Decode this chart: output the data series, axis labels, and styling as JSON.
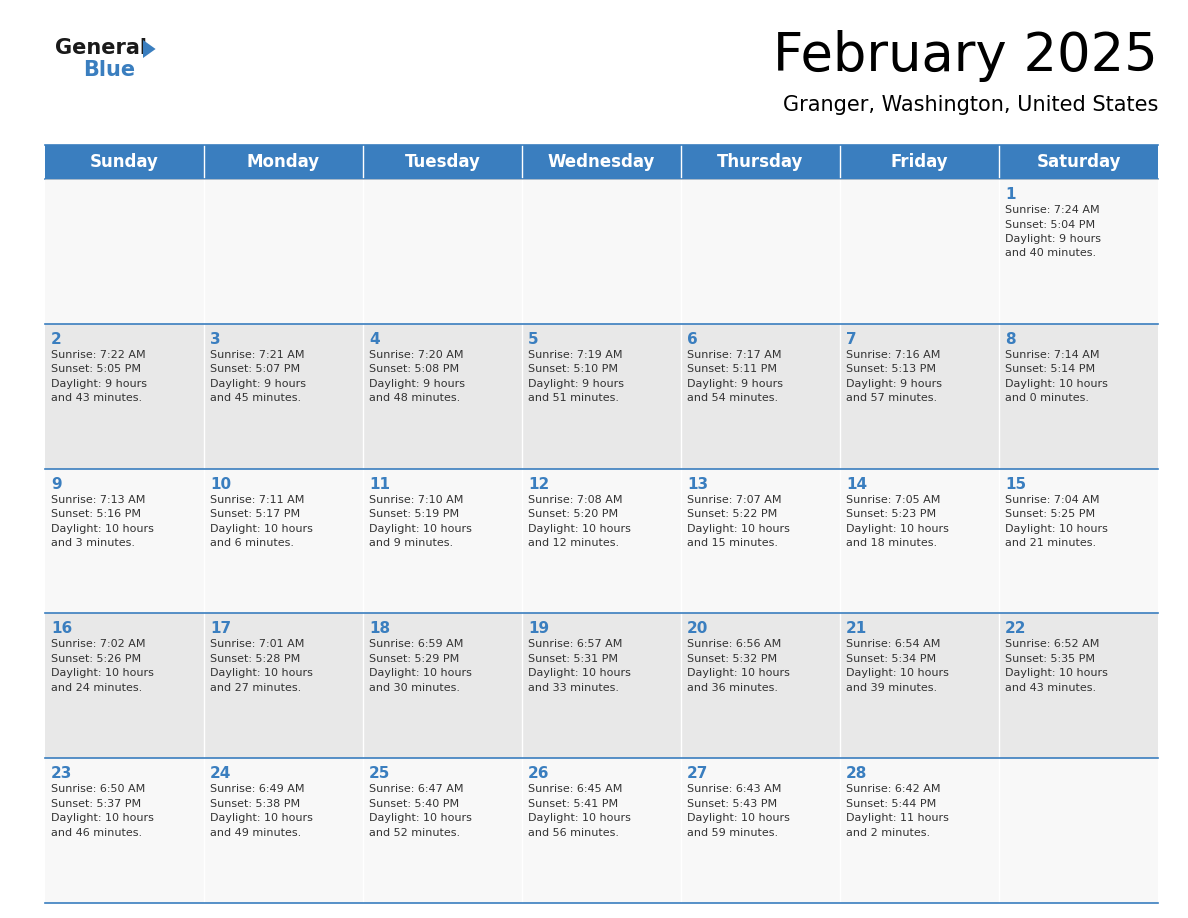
{
  "title": "February 2025",
  "subtitle": "Granger, Washington, United States",
  "header_color": "#3a7ebf",
  "header_text_color": "#ffffff",
  "cell_bg_color_odd": "#e8e8e8",
  "cell_bg_color_even": "#f8f8f8",
  "day_number_color": "#3a7ebf",
  "cell_text_color": "#333333",
  "border_color": "#3a7ebf",
  "days_of_week": [
    "Sunday",
    "Monday",
    "Tuesday",
    "Wednesday",
    "Thursday",
    "Friday",
    "Saturday"
  ],
  "weeks": [
    [
      {
        "day": null,
        "sunrise": null,
        "sunset": null,
        "daylight": null
      },
      {
        "day": null,
        "sunrise": null,
        "sunset": null,
        "daylight": null
      },
      {
        "day": null,
        "sunrise": null,
        "sunset": null,
        "daylight": null
      },
      {
        "day": null,
        "sunrise": null,
        "sunset": null,
        "daylight": null
      },
      {
        "day": null,
        "sunrise": null,
        "sunset": null,
        "daylight": null
      },
      {
        "day": null,
        "sunrise": null,
        "sunset": null,
        "daylight": null
      },
      {
        "day": 1,
        "sunrise": "7:24 AM",
        "sunset": "5:04 PM",
        "daylight": "9 hours and 40 minutes."
      }
    ],
    [
      {
        "day": 2,
        "sunrise": "7:22 AM",
        "sunset": "5:05 PM",
        "daylight": "9 hours and 43 minutes."
      },
      {
        "day": 3,
        "sunrise": "7:21 AM",
        "sunset": "5:07 PM",
        "daylight": "9 hours and 45 minutes."
      },
      {
        "day": 4,
        "sunrise": "7:20 AM",
        "sunset": "5:08 PM",
        "daylight": "9 hours and 48 minutes."
      },
      {
        "day": 5,
        "sunrise": "7:19 AM",
        "sunset": "5:10 PM",
        "daylight": "9 hours and 51 minutes."
      },
      {
        "day": 6,
        "sunrise": "7:17 AM",
        "sunset": "5:11 PM",
        "daylight": "9 hours and 54 minutes."
      },
      {
        "day": 7,
        "sunrise": "7:16 AM",
        "sunset": "5:13 PM",
        "daylight": "9 hours and 57 minutes."
      },
      {
        "day": 8,
        "sunrise": "7:14 AM",
        "sunset": "5:14 PM",
        "daylight": "10 hours and 0 minutes."
      }
    ],
    [
      {
        "day": 9,
        "sunrise": "7:13 AM",
        "sunset": "5:16 PM",
        "daylight": "10 hours and 3 minutes."
      },
      {
        "day": 10,
        "sunrise": "7:11 AM",
        "sunset": "5:17 PM",
        "daylight": "10 hours and 6 minutes."
      },
      {
        "day": 11,
        "sunrise": "7:10 AM",
        "sunset": "5:19 PM",
        "daylight": "10 hours and 9 minutes."
      },
      {
        "day": 12,
        "sunrise": "7:08 AM",
        "sunset": "5:20 PM",
        "daylight": "10 hours and 12 minutes."
      },
      {
        "day": 13,
        "sunrise": "7:07 AM",
        "sunset": "5:22 PM",
        "daylight": "10 hours and 15 minutes."
      },
      {
        "day": 14,
        "sunrise": "7:05 AM",
        "sunset": "5:23 PM",
        "daylight": "10 hours and 18 minutes."
      },
      {
        "day": 15,
        "sunrise": "7:04 AM",
        "sunset": "5:25 PM",
        "daylight": "10 hours and 21 minutes."
      }
    ],
    [
      {
        "day": 16,
        "sunrise": "7:02 AM",
        "sunset": "5:26 PM",
        "daylight": "10 hours and 24 minutes."
      },
      {
        "day": 17,
        "sunrise": "7:01 AM",
        "sunset": "5:28 PM",
        "daylight": "10 hours and 27 minutes."
      },
      {
        "day": 18,
        "sunrise": "6:59 AM",
        "sunset": "5:29 PM",
        "daylight": "10 hours and 30 minutes."
      },
      {
        "day": 19,
        "sunrise": "6:57 AM",
        "sunset": "5:31 PM",
        "daylight": "10 hours and 33 minutes."
      },
      {
        "day": 20,
        "sunrise": "6:56 AM",
        "sunset": "5:32 PM",
        "daylight": "10 hours and 36 minutes."
      },
      {
        "day": 21,
        "sunrise": "6:54 AM",
        "sunset": "5:34 PM",
        "daylight": "10 hours and 39 minutes."
      },
      {
        "day": 22,
        "sunrise": "6:52 AM",
        "sunset": "5:35 PM",
        "daylight": "10 hours and 43 minutes."
      }
    ],
    [
      {
        "day": 23,
        "sunrise": "6:50 AM",
        "sunset": "5:37 PM",
        "daylight": "10 hours and 46 minutes."
      },
      {
        "day": 24,
        "sunrise": "6:49 AM",
        "sunset": "5:38 PM",
        "daylight": "10 hours and 49 minutes."
      },
      {
        "day": 25,
        "sunrise": "6:47 AM",
        "sunset": "5:40 PM",
        "daylight": "10 hours and 52 minutes."
      },
      {
        "day": 26,
        "sunrise": "6:45 AM",
        "sunset": "5:41 PM",
        "daylight": "10 hours and 56 minutes."
      },
      {
        "day": 27,
        "sunrise": "6:43 AM",
        "sunset": "5:43 PM",
        "daylight": "10 hours and 59 minutes."
      },
      {
        "day": 28,
        "sunrise": "6:42 AM",
        "sunset": "5:44 PM",
        "daylight": "11 hours and 2 minutes."
      },
      {
        "day": null,
        "sunrise": null,
        "sunset": null,
        "daylight": null
      }
    ]
  ],
  "title_fontsize": 38,
  "subtitle_fontsize": 15,
  "header_fontsize": 12,
  "day_num_fontsize": 11,
  "cell_text_fontsize": 8,
  "logo_general_fontsize": 15,
  "logo_blue_fontsize": 15
}
